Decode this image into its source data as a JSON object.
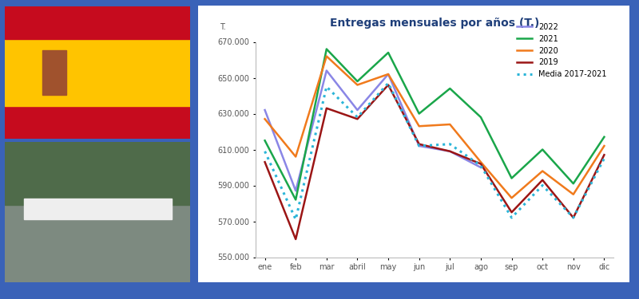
{
  "chart_data": {
    "type": "line",
    "title": "Entregas mensuales por años (T.)",
    "y_label": "T.",
    "categories": [
      "ene",
      "feb",
      "mar",
      "abril",
      "may",
      "jun",
      "jul",
      "ago",
      "sep",
      "oct",
      "nov",
      "dic"
    ],
    "series": [
      {
        "name": "2022",
        "color": "#8a86e6",
        "line_style": "solid",
        "values": [
          632000,
          587000,
          654000,
          632000,
          652000,
          612000,
          609000,
          600000,
          null,
          null,
          null,
          null
        ]
      },
      {
        "name": "2021",
        "color": "#1aa64a",
        "line_style": "solid",
        "values": [
          615000,
          582000,
          666000,
          648000,
          664000,
          630000,
          644000,
          628000,
          594000,
          610000,
          591000,
          617000
        ]
      },
      {
        "name": "2020",
        "color": "#f07a1c",
        "line_style": "solid",
        "values": [
          627000,
          606000,
          662000,
          646000,
          652000,
          623000,
          624000,
          603000,
          583000,
          598000,
          585000,
          612000
        ]
      },
      {
        "name": "2019",
        "color": "#9b1515",
        "line_style": "solid",
        "values": [
          603000,
          560000,
          633000,
          627000,
          646000,
          613000,
          609000,
          602000,
          575000,
          593000,
          572000,
          607000
        ]
      },
      {
        "name": "Media 2017-2021",
        "color": "#2bb5d8",
        "line_style": "dotted",
        "values": [
          609000,
          571000,
          645000,
          628000,
          647000,
          612000,
          613000,
          601000,
          572000,
          590000,
          572000,
          605000
        ]
      }
    ],
    "ylim": [
      550000,
      670000
    ],
    "yticks": [
      {
        "value": 550000,
        "label": "550.000"
      },
      {
        "value": 570000,
        "label": "570.000"
      },
      {
        "value": 590000,
        "label": "590.000"
      },
      {
        "value": 610000,
        "label": "610.000"
      },
      {
        "value": 630000,
        "label": "630.000"
      },
      {
        "value": 650000,
        "label": "650.000"
      },
      {
        "value": 670000,
        "label": "670.000"
      }
    ],
    "grid": false,
    "legend": "upper right"
  }
}
